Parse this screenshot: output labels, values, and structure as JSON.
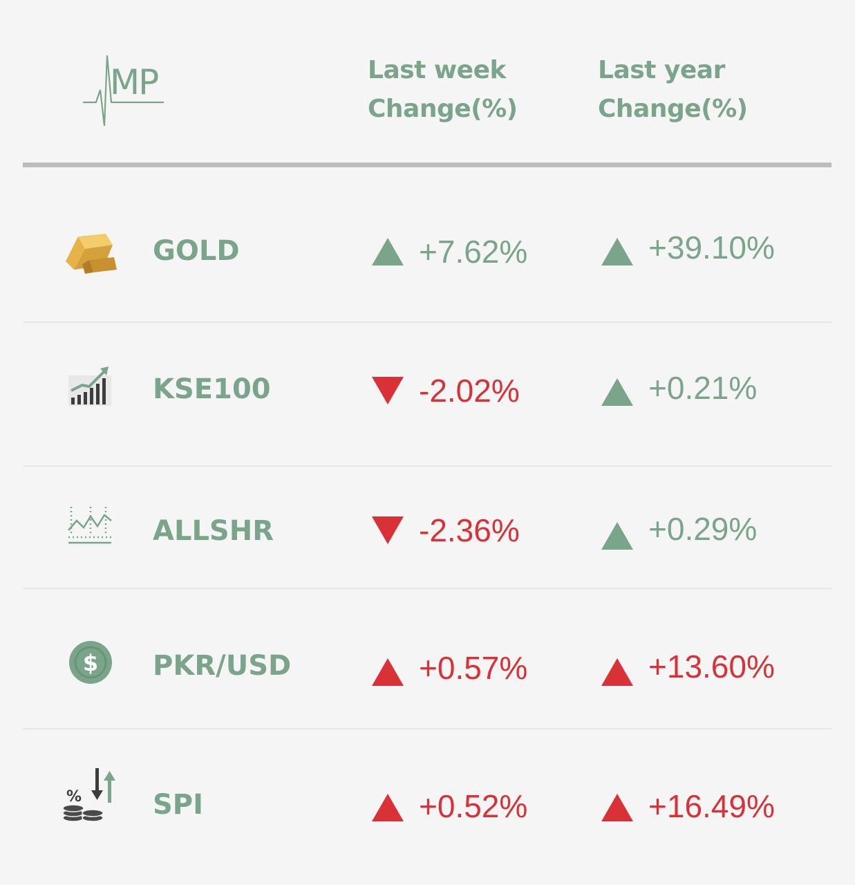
{
  "colors": {
    "green": "#7aa58a",
    "red": "#d83136",
    "rule": "#bdbdbd",
    "background": "#f5f5f5"
  },
  "logo": {
    "text": "MP",
    "icon": "amp-heartbeat-logo"
  },
  "header": {
    "week_col_line1": "Last week",
    "week_col_line2": "Change(%)",
    "year_col_line1": "Last year",
    "year_col_line2": "Change(%)"
  },
  "rows": [
    {
      "name": "GOLD",
      "icon": "gold-bar-icon",
      "week": {
        "value": "+7.62%",
        "direction": "up",
        "color": "green"
      },
      "year": {
        "value": "+39.10%",
        "direction": "up",
        "color": "green"
      }
    },
    {
      "name": "KSE100",
      "icon": "rising-bar-chart-icon",
      "week": {
        "value": "-2.02%",
        "direction": "down",
        "color": "red"
      },
      "year": {
        "value": "+0.21%",
        "direction": "up",
        "color": "green"
      }
    },
    {
      "name": "ALLSHR",
      "icon": "line-chart-icon",
      "week": {
        "value": "-2.36%",
        "direction": "down",
        "color": "red"
      },
      "year": {
        "value": "+0.29%",
        "direction": "up",
        "color": "green"
      }
    },
    {
      "name": "PKR/USD",
      "icon": "dollar-coin-icon",
      "week": {
        "value": "+0.57%",
        "direction": "up",
        "color": "red"
      },
      "year": {
        "value": "+13.60%",
        "direction": "up",
        "color": "red"
      }
    },
    {
      "name": "SPI",
      "icon": "coins-percent-arrows-icon",
      "week": {
        "value": "+0.52%",
        "direction": "up",
        "color": "red"
      },
      "year": {
        "value": "+16.49%",
        "direction": "up",
        "color": "red"
      }
    }
  ]
}
